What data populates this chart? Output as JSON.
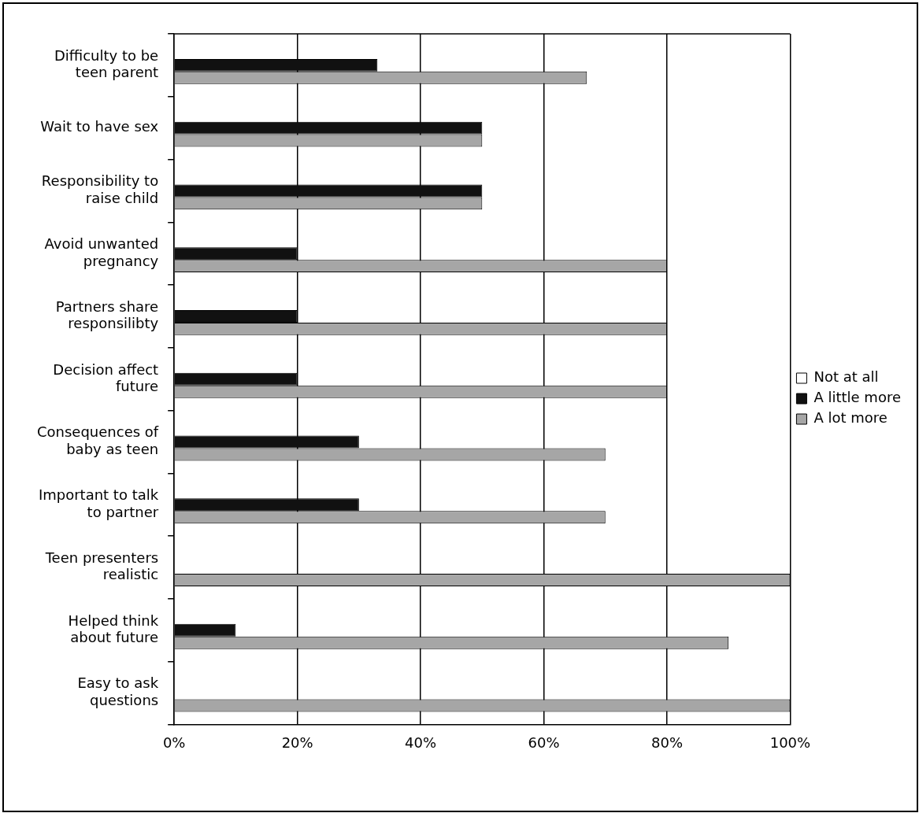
{
  "chart_data": {
    "type": "bar",
    "orientation": "horizontal",
    "categories": [
      "Difficulty to be teen parent",
      "Wait to have sex",
      "Responsibility to raise child",
      "Avoid unwanted pregnancy",
      "Partners share responsilibty",
      "Decision affect future",
      "Consequences of baby as teen",
      "Important to talk to partner",
      "Teen presenters realistic",
      "Helped think about future",
      "Easy to ask questions"
    ],
    "series": [
      {
        "name": "Not at all",
        "color": "#ffffff",
        "values": [
          0,
          0,
          0,
          0,
          0,
          0,
          0,
          0,
          0,
          0,
          0
        ]
      },
      {
        "name": "A little more",
        "color": "#111111",
        "values": [
          33,
          50,
          50,
          20,
          20,
          20,
          30,
          30,
          0,
          10,
          0
        ]
      },
      {
        "name": "A lot more",
        "color": "#a6a6a6",
        "values": [
          67,
          50,
          50,
          80,
          80,
          80,
          70,
          70,
          100,
          90,
          100
        ]
      }
    ],
    "xlim": [
      0,
      100
    ],
    "xticks": [
      {
        "value": 0,
        "label": "0%"
      },
      {
        "value": 20,
        "label": "20%"
      },
      {
        "value": 40,
        "label": "40%"
      },
      {
        "value": 60,
        "label": "60%"
      },
      {
        "value": 80,
        "label": "80%"
      },
      {
        "value": 100,
        "label": "100%"
      }
    ],
    "grid": "x",
    "legend": "right"
  }
}
